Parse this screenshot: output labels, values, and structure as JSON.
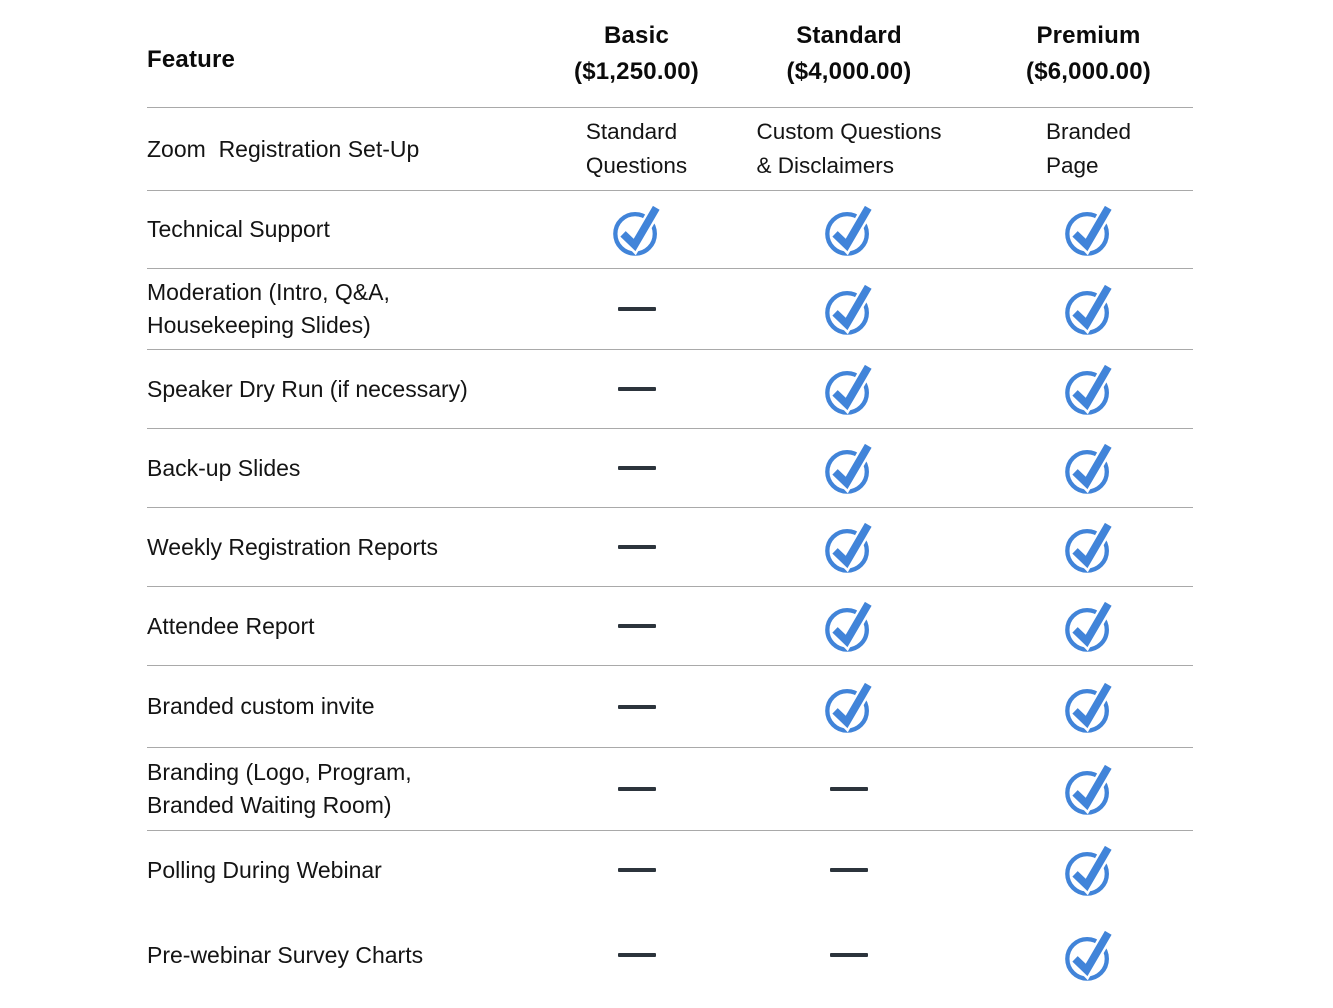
{
  "header": {
    "feature_label": "Feature",
    "plans": [
      {
        "name": "Basic",
        "price": "($1,250.00)"
      },
      {
        "name": "Standard",
        "price": "($4,000.00)"
      },
      {
        "name": "Premium",
        "price": "($6,000.00)"
      }
    ]
  },
  "rows": [
    {
      "feature": "Zoom  Registration Set-Up",
      "values": [
        {
          "type": "text",
          "text": "Standard\nQuestions"
        },
        {
          "type": "text",
          "text": "Custom Questions\n& Disclaimers"
        },
        {
          "type": "text",
          "text": "Branded\nPage"
        }
      ]
    },
    {
      "feature": "Technical Support",
      "values": [
        {
          "type": "check"
        },
        {
          "type": "check"
        },
        {
          "type": "check"
        }
      ]
    },
    {
      "feature": "Moderation (Intro, Q&A,\nHousekeeping Slides)",
      "values": [
        {
          "type": "dash"
        },
        {
          "type": "check"
        },
        {
          "type": "check"
        }
      ]
    },
    {
      "feature": "Speaker Dry Run (if necessary)",
      "values": [
        {
          "type": "dash"
        },
        {
          "type": "check"
        },
        {
          "type": "check"
        }
      ]
    },
    {
      "feature": "Back-up Slides",
      "values": [
        {
          "type": "dash"
        },
        {
          "type": "check"
        },
        {
          "type": "check"
        }
      ]
    },
    {
      "feature": "Weekly Registration Reports",
      "values": [
        {
          "type": "dash"
        },
        {
          "type": "check"
        },
        {
          "type": "check"
        }
      ]
    },
    {
      "feature": "Attendee Report",
      "values": [
        {
          "type": "dash"
        },
        {
          "type": "check"
        },
        {
          "type": "check"
        }
      ]
    },
    {
      "feature": "Branded custom invite",
      "values": [
        {
          "type": "dash"
        },
        {
          "type": "check"
        },
        {
          "type": "check"
        }
      ]
    },
    {
      "feature": "Branding (Logo, Program,\nBranded Waiting Room)",
      "values": [
        {
          "type": "dash"
        },
        {
          "type": "dash"
        },
        {
          "type": "check"
        }
      ]
    },
    {
      "feature": "Polling During Webinar",
      "values": [
        {
          "type": "dash"
        },
        {
          "type": "dash"
        },
        {
          "type": "check"
        }
      ]
    },
    {
      "feature": "Pre-webinar Survey Charts",
      "values": [
        {
          "type": "dash"
        },
        {
          "type": "dash"
        },
        {
          "type": "check"
        }
      ]
    }
  ],
  "icons": {
    "check": "check-circle-icon",
    "dash": "dash-mark"
  },
  "colors": {
    "accent_blue": "#4184d9",
    "dash_dark": "#2c343c",
    "divider_gray": "#a9a9a9",
    "text_black": "#131313"
  }
}
